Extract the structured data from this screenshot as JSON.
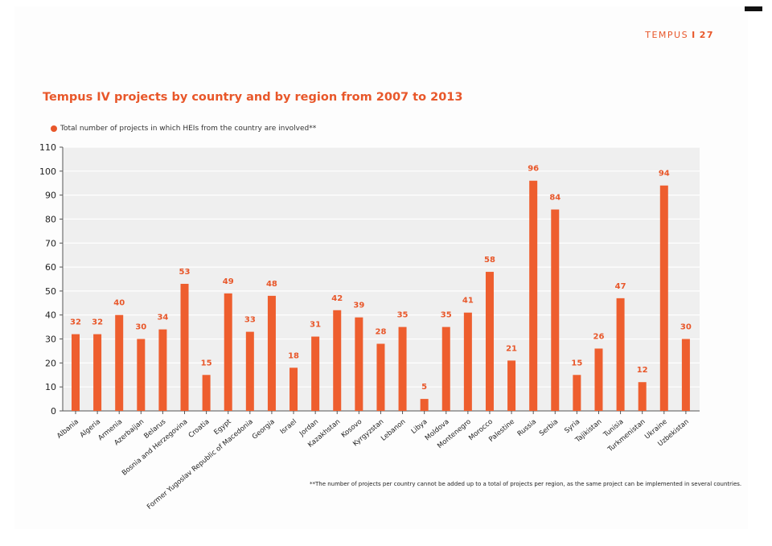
{
  "header": {
    "section": "TEMPUS",
    "separator": "I",
    "page_number": "27"
  },
  "title": "Tempus IV projects by country and by region from 2007 to 2013",
  "legend": {
    "label": "Total number of projects in which HEIs from the country are involved**"
  },
  "footnote": "**The number of projects per country cannot be added up to a total of projects per region, as the same project can be implemented in several countries.",
  "colors": {
    "bar": "#ee5e2e",
    "label": "#e8572a",
    "grid": "#ffffff",
    "plot_bg": "#efefef",
    "axis": "#555555"
  },
  "chart_data": {
    "type": "bar",
    "title": "Tempus IV projects by country and by region from 2007 to 2013",
    "xlabel": "",
    "ylabel": "",
    "ylim": [
      0,
      110
    ],
    "yticks": [
      0,
      10,
      20,
      30,
      40,
      50,
      60,
      70,
      80,
      90,
      100,
      110
    ],
    "categories": [
      "Albania",
      "Algeria",
      "Armenia",
      "Azerbaijan",
      "Belarus",
      "Bosnia and Herzegovina",
      "Croatia",
      "Egypt",
      "Former Yugoslav Republic of Macedonia",
      "Georgia",
      "Israel",
      "Jordan",
      "Kazakhstan",
      "Kosovo",
      "Kyrgyzstan",
      "Lebanon",
      "Libya",
      "Moldova",
      "Montenegro",
      "Morocco",
      "Palestine",
      "Russia",
      "Serbia",
      "Syria",
      "Tajikistan",
      "Tunisia",
      "Turkmenistan",
      "Ukraine",
      "Uzbekistan"
    ],
    "series": [
      {
        "name": "Total number of projects in which HEIs from the country are involved**",
        "values": [
          32,
          32,
          40,
          30,
          34,
          53,
          15,
          49,
          33,
          48,
          18,
          31,
          42,
          39,
          28,
          35,
          5,
          35,
          41,
          58,
          21,
          96,
          84,
          15,
          26,
          47,
          12,
          94,
          30
        ]
      }
    ]
  }
}
